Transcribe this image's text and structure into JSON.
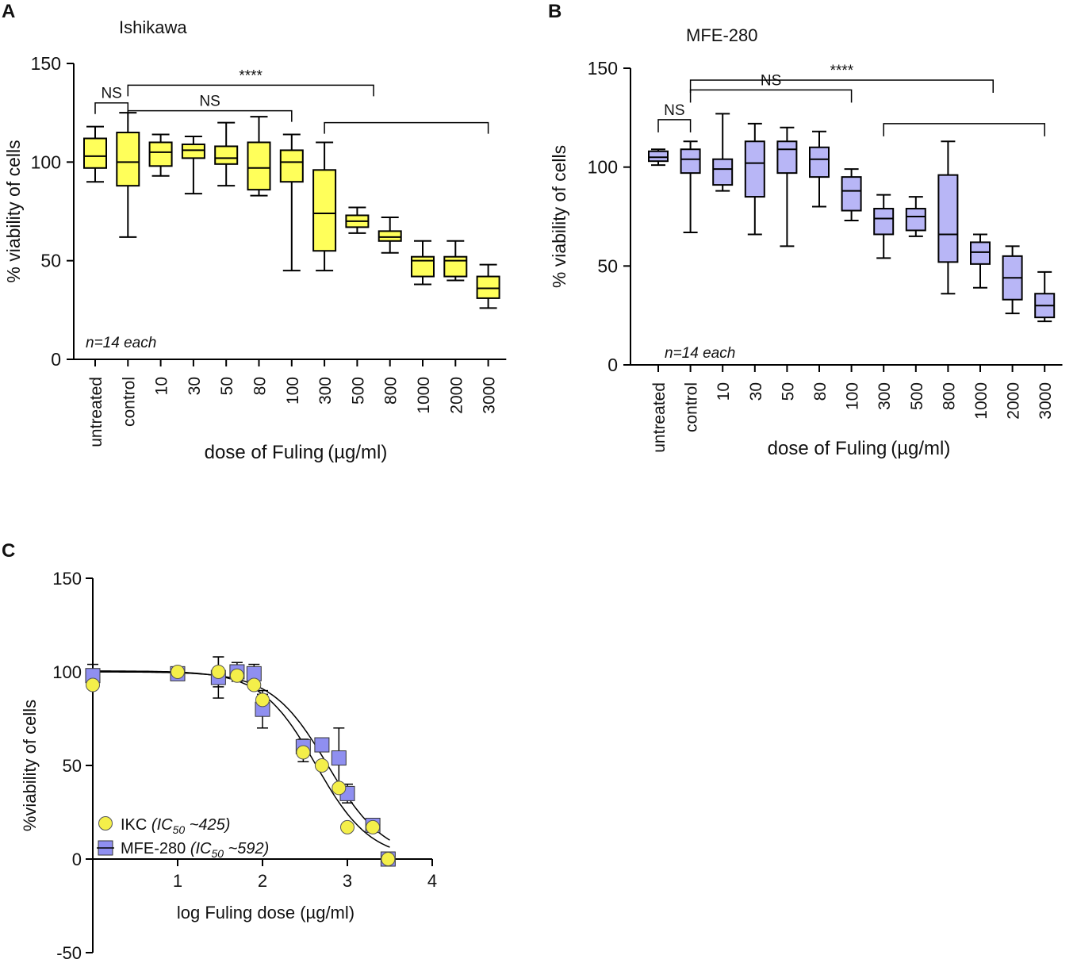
{
  "panels": {
    "A": {
      "letter": "A"
    },
    "B": {
      "letter": "B"
    },
    "C": {
      "letter": "C"
    }
  },
  "chart_data": [
    {
      "id": "A",
      "type": "box",
      "title": "Ishikawa",
      "ylabel": "% viability of cells",
      "xlabel": "dose of Fuling (µg/ml)",
      "ylim": [
        0,
        150
      ],
      "yticks": [
        0,
        50,
        100,
        150
      ],
      "categories": [
        "untreated",
        "control",
        "10",
        "30",
        "50",
        "80",
        "100",
        "300",
        "500",
        "800",
        "1000",
        "2000",
        "3000"
      ],
      "color": "#ffff5a",
      "note": "n=14 each",
      "boxes": [
        {
          "min": 90,
          "q1": 97,
          "median": 103,
          "q3": 112,
          "max": 118
        },
        {
          "min": 62,
          "q1": 88,
          "median": 100,
          "q3": 115,
          "max": 125
        },
        {
          "min": 93,
          "q1": 98,
          "median": 105,
          "q3": 110,
          "max": 114
        },
        {
          "min": 84,
          "q1": 102,
          "median": 106,
          "q3": 109,
          "max": 113
        },
        {
          "min": 88,
          "q1": 99,
          "median": 102,
          "q3": 108,
          "max": 120
        },
        {
          "min": 83,
          "q1": 86,
          "median": 97,
          "q3": 110,
          "max": 123
        },
        {
          "min": 45,
          "q1": 90,
          "median": 100,
          "q3": 106,
          "max": 114
        },
        {
          "min": 45,
          "q1": 55,
          "median": 74,
          "q3": 96,
          "max": 110
        },
        {
          "min": 64,
          "q1": 67,
          "median": 70,
          "q3": 73,
          "max": 77
        },
        {
          "min": 54,
          "q1": 60,
          "median": 62,
          "q3": 65,
          "max": 72
        },
        {
          "min": 38,
          "q1": 42,
          "median": 50,
          "q3": 52,
          "max": 60
        },
        {
          "min": 40,
          "q1": 42,
          "median": 50,
          "q3": 52,
          "max": 60
        },
        {
          "min": 26,
          "q1": 31,
          "median": 36,
          "q3": 42,
          "max": 48
        }
      ],
      "annotations": [
        {
          "label": "NS",
          "from": 0,
          "to": 1,
          "y": 130
        },
        {
          "label": "NS",
          "from": 1,
          "to": 6,
          "y": 126
        },
        {
          "label": "****",
          "from": 1,
          "to": 8.5,
          "y": 139
        },
        {
          "label": "",
          "from": 7,
          "to": 12,
          "y": 120
        }
      ]
    },
    {
      "id": "B",
      "type": "box",
      "title": "MFE-280",
      "ylabel": "% viability of cells",
      "xlabel": "dose of Fuling (µg/ml)",
      "ylim": [
        0,
        150
      ],
      "yticks": [
        0,
        50,
        100,
        150
      ],
      "categories": [
        "untreated",
        "control",
        "10",
        "30",
        "50",
        "80",
        "100",
        "300",
        "500",
        "800",
        "1000",
        "2000",
        "3000"
      ],
      "color": "#b8b6f6",
      "note": "n=14 each",
      "boxes": [
        {
          "min": 101,
          "q1": 103,
          "median": 105,
          "q3": 108,
          "max": 109
        },
        {
          "min": 67,
          "q1": 97,
          "median": 104,
          "q3": 109,
          "max": 113
        },
        {
          "min": 88,
          "q1": 91,
          "median": 99,
          "q3": 104,
          "max": 127
        },
        {
          "min": 66,
          "q1": 85,
          "median": 102,
          "q3": 113,
          "max": 122
        },
        {
          "min": 60,
          "q1": 97,
          "median": 109,
          "q3": 113,
          "max": 120
        },
        {
          "min": 80,
          "q1": 95,
          "median": 104,
          "q3": 110,
          "max": 118
        },
        {
          "min": 73,
          "q1": 78,
          "median": 88,
          "q3": 95,
          "max": 99
        },
        {
          "min": 54,
          "q1": 66,
          "median": 74,
          "q3": 79,
          "max": 86
        },
        {
          "min": 65,
          "q1": 68,
          "median": 75,
          "q3": 79,
          "max": 85
        },
        {
          "min": 36,
          "q1": 52,
          "median": 66,
          "q3": 96,
          "max": 113
        },
        {
          "min": 39,
          "q1": 51,
          "median": 57,
          "q3": 62,
          "max": 66
        },
        {
          "min": 26,
          "q1": 33,
          "median": 44,
          "q3": 55,
          "max": 60
        },
        {
          "min": 22,
          "q1": 24,
          "median": 30,
          "q3": 36,
          "max": 47
        }
      ],
      "annotations": [
        {
          "label": "NS",
          "from": 0,
          "to": 1,
          "y": 124
        },
        {
          "label": "NS",
          "from": 1,
          "to": 6,
          "y": 139
        },
        {
          "label": "****",
          "from": 1,
          "to": 10.4,
          "y": 144
        },
        {
          "label": "",
          "from": 7,
          "to": 12,
          "y": 122
        }
      ]
    },
    {
      "id": "C",
      "type": "scatter",
      "xlabel": "log Fuling dose (µg/ml)",
      "ylabel": "%viability of  cells",
      "xlim": [
        0,
        4
      ],
      "ylim": [
        -50,
        150
      ],
      "xticks": [
        1,
        2,
        3,
        4
      ],
      "yticks": [
        -50,
        0,
        50,
        100,
        150
      ],
      "series": [
        {
          "name": "IKC",
          "ic50_label": "(IC",
          "ic50_sub": "50",
          "ic50_value": " ~425)",
          "marker": "circle",
          "color": "#f4ef4a",
          "points": [
            {
              "x": 0,
              "y": 93,
              "err": 0
            },
            {
              "x": 1,
              "y": 100,
              "err": 0
            },
            {
              "x": 1.48,
              "y": 100,
              "err": 8
            },
            {
              "x": 1.7,
              "y": 98,
              "err": 0
            },
            {
              "x": 1.9,
              "y": 93,
              "err": 0
            },
            {
              "x": 2,
              "y": 85,
              "err": 3
            },
            {
              "x": 2.48,
              "y": 57,
              "err": 5
            },
            {
              "x": 2.7,
              "y": 50,
              "err": 0
            },
            {
              "x": 2.9,
              "y": 38,
              "err": 0
            },
            {
              "x": 3,
              "y": 17,
              "err": 0
            },
            {
              "x": 3.3,
              "y": 17,
              "err": 0
            },
            {
              "x": 3.48,
              "y": 0,
              "err": 0
            }
          ],
          "fit": {
            "top": 100.5,
            "bottom": 0,
            "logIC50": 2.63,
            "hill": 1.35
          }
        },
        {
          "name": "MFE-280",
          "ic50_label": "(IC",
          "ic50_sub": "50",
          "ic50_value": " ~592)",
          "marker": "square",
          "color": "#8f8ff0",
          "points": [
            {
              "x": 0,
              "y": 98,
              "err": 6
            },
            {
              "x": 1,
              "y": 99,
              "err": 0
            },
            {
              "x": 1.48,
              "y": 97,
              "err": 11
            },
            {
              "x": 1.7,
              "y": 100,
              "err": 5
            },
            {
              "x": 1.9,
              "y": 99,
              "err": 5
            },
            {
              "x": 2,
              "y": 80,
              "err": 10
            },
            {
              "x": 2.48,
              "y": 60,
              "err": 4
            },
            {
              "x": 2.7,
              "y": 61,
              "err": 0
            },
            {
              "x": 2.9,
              "y": 54,
              "err": 16
            },
            {
              "x": 3,
              "y": 35,
              "err": 5
            },
            {
              "x": 3.3,
              "y": 18,
              "err": 0
            },
            {
              "x": 3.48,
              "y": 0,
              "err": 0
            }
          ],
          "fit": {
            "top": 100,
            "bottom": 0,
            "logIC50": 2.77,
            "hill": 1.3
          }
        }
      ]
    }
  ]
}
